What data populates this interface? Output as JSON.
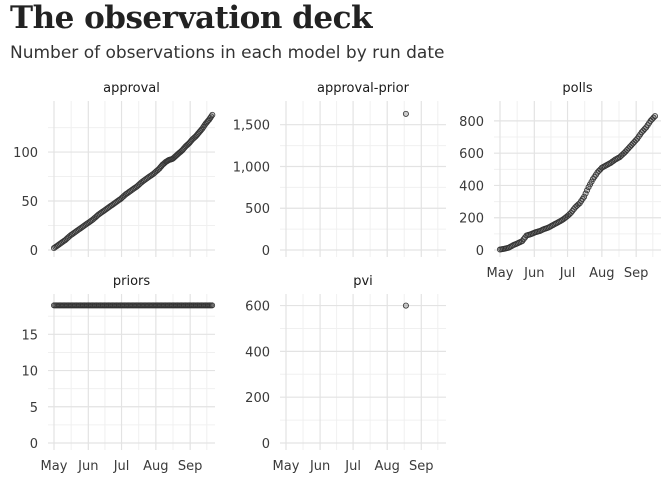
{
  "title": "The observation deck",
  "subtitle": "Number of observations in each model by run date",
  "chart_data": {
    "type": "scatter",
    "facet_order": [
      "approval",
      "approval-prior",
      "polls",
      "priors",
      "pvi"
    ],
    "x_axis": {
      "domain_days": [
        0,
        140
      ],
      "ticks": [
        {
          "label": "May",
          "day": 0
        },
        {
          "label": "Jun",
          "day": 31
        },
        {
          "label": "Jul",
          "day": 61
        },
        {
          "label": "Aug",
          "day": 92
        },
        {
          "label": "Sep",
          "day": 123
        }
      ]
    },
    "x_start": "2020-05-01",
    "rows": [
      {
        "facets": [
          "approval",
          "approval-prior",
          "polls"
        ],
        "ylim": null
      },
      {
        "facets": [
          "priors",
          "pvi"
        ],
        "ylim": null
      }
    ],
    "facets": {
      "approval": {
        "ylim": [
          0,
          145
        ],
        "yticks": [
          0,
          50,
          100
        ],
        "points": [
          [
            0,
            2
          ],
          [
            5,
            6
          ],
          [
            10,
            10
          ],
          [
            15,
            15
          ],
          [
            20,
            19
          ],
          [
            25,
            23
          ],
          [
            30,
            27
          ],
          [
            35,
            31
          ],
          [
            40,
            36
          ],
          [
            45,
            40
          ],
          [
            50,
            44
          ],
          [
            55,
            48
          ],
          [
            60,
            52
          ],
          [
            65,
            57
          ],
          [
            70,
            61
          ],
          [
            75,
            65
          ],
          [
            80,
            70
          ],
          [
            85,
            74
          ],
          [
            90,
            78
          ],
          [
            95,
            83
          ],
          [
            98,
            87
          ],
          [
            101,
            90
          ],
          [
            104,
            92
          ],
          [
            107,
            93
          ],
          [
            110,
            96
          ],
          [
            113,
            99
          ],
          [
            116,
            102
          ],
          [
            119,
            106
          ],
          [
            122,
            109
          ],
          [
            125,
            113
          ],
          [
            128,
            116
          ],
          [
            131,
            120
          ],
          [
            134,
            124
          ],
          [
            137,
            129
          ],
          [
            140,
            133
          ],
          [
            143,
            138
          ]
        ]
      },
      "approval-prior": {
        "ylim": [
          0,
          1700
        ],
        "yticks": [
          0,
          500,
          1000,
          1500
        ],
        "ytick_labels": [
          "0",
          "500",
          "1,000",
          "1,500"
        ],
        "points": [
          [
            109,
            1630
          ]
        ]
      },
      "polls": {
        "ylim": [
          0,
          880
        ],
        "yticks": [
          0,
          200,
          400,
          600,
          800
        ],
        "points": [
          [
            0,
            3
          ],
          [
            4,
            8
          ],
          [
            8,
            15
          ],
          [
            12,
            30
          ],
          [
            16,
            42
          ],
          [
            20,
            55
          ],
          [
            24,
            90
          ],
          [
            28,
            98
          ],
          [
            32,
            110
          ],
          [
            36,
            118
          ],
          [
            40,
            130
          ],
          [
            44,
            140
          ],
          [
            48,
            155
          ],
          [
            52,
            170
          ],
          [
            56,
            185
          ],
          [
            60,
            205
          ],
          [
            64,
            230
          ],
          [
            68,
            265
          ],
          [
            72,
            290
          ],
          [
            76,
            330
          ],
          [
            80,
            390
          ],
          [
            84,
            440
          ],
          [
            88,
            480
          ],
          [
            92,
            510
          ],
          [
            96,
            525
          ],
          [
            100,
            540
          ],
          [
            104,
            560
          ],
          [
            108,
            575
          ],
          [
            112,
            600
          ],
          [
            116,
            630
          ],
          [
            120,
            660
          ],
          [
            124,
            690
          ],
          [
            128,
            730
          ],
          [
            132,
            760
          ],
          [
            136,
            800
          ],
          [
            140,
            830
          ]
        ]
      },
      "priors": {
        "ylim": [
          0,
          19.6
        ],
        "yticks": [
          0,
          5,
          10,
          15
        ],
        "constant_y": 19,
        "x_range": [
          0,
          143
        ]
      },
      "pvi": {
        "ylim": [
          0,
          620
        ],
        "yticks": [
          0,
          200,
          400,
          600
        ],
        "points": [
          [
            109,
            600
          ]
        ]
      }
    }
  }
}
